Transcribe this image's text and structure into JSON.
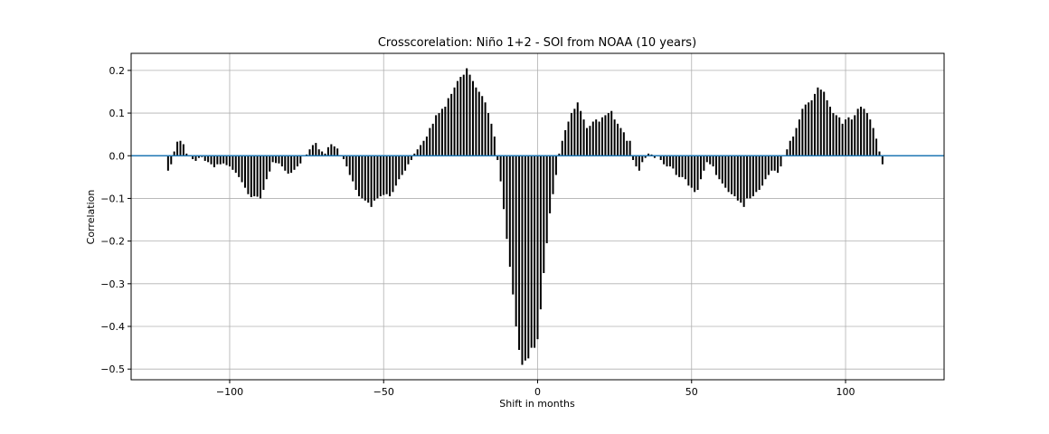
{
  "chart_data": {
    "type": "bar",
    "title": "Crosscorelation: Niño 1+2 - SOI from NOAA (10 years)",
    "xlabel": "Shift in months",
    "ylabel": "Correlation",
    "xlim": [
      -132,
      132
    ],
    "ylim": [
      -0.525,
      0.24
    ],
    "xticks": [
      -100,
      -50,
      0,
      50,
      100
    ],
    "xtick_labels": [
      "−100",
      "−50",
      "0",
      "50",
      "100"
    ],
    "yticks": [
      -0.5,
      -0.4,
      -0.3,
      -0.2,
      -0.1,
      0.0,
      0.1,
      0.2
    ],
    "ytick_labels": [
      "−0.5",
      "−0.4",
      "−0.3",
      "−0.2",
      "−0.1",
      "0.0",
      "0.1",
      "0.2"
    ],
    "grid": true,
    "bar_color": "#000000",
    "zero_line_color": "#1f77b4",
    "x_start": -120,
    "x_step": 1,
    "values": [
      -0.035,
      -0.02,
      0.01,
      0.033,
      0.035,
      0.027,
      0.005,
      0.0,
      -0.008,
      -0.012,
      -0.005,
      -0.003,
      -0.012,
      -0.015,
      -0.02,
      -0.027,
      -0.02,
      -0.02,
      -0.018,
      -0.022,
      -0.025,
      -0.033,
      -0.04,
      -0.05,
      -0.062,
      -0.075,
      -0.09,
      -0.097,
      -0.095,
      -0.096,
      -0.1,
      -0.08,
      -0.055,
      -0.037,
      -0.015,
      -0.017,
      -0.018,
      -0.025,
      -0.035,
      -0.042,
      -0.04,
      -0.033,
      -0.025,
      -0.018,
      0.0,
      0.003,
      0.015,
      0.025,
      0.03,
      0.015,
      0.01,
      0.005,
      0.02,
      0.027,
      0.022,
      0.017,
      0.0,
      -0.008,
      -0.025,
      -0.045,
      -0.06,
      -0.08,
      -0.095,
      -0.1,
      -0.105,
      -0.11,
      -0.12,
      -0.105,
      -0.1,
      -0.095,
      -0.092,
      -0.09,
      -0.095,
      -0.085,
      -0.07,
      -0.055,
      -0.045,
      -0.035,
      -0.02,
      -0.01,
      0.005,
      0.015,
      0.025,
      0.035,
      0.045,
      0.065,
      0.075,
      0.095,
      0.1,
      0.11,
      0.115,
      0.135,
      0.145,
      0.16,
      0.175,
      0.185,
      0.19,
      0.205,
      0.19,
      0.175,
      0.16,
      0.15,
      0.14,
      0.125,
      0.1,
      0.075,
      0.045,
      -0.01,
      -0.06,
      -0.125,
      -0.195,
      -0.26,
      -0.325,
      -0.4,
      -0.455,
      -0.49,
      -0.48,
      -0.475,
      -0.45,
      -0.45,
      -0.43,
      -0.36,
      -0.275,
      -0.205,
      -0.135,
      -0.09,
      -0.045,
      0.005,
      0.035,
      0.06,
      0.08,
      0.1,
      0.11,
      0.125,
      0.105,
      0.085,
      0.065,
      0.07,
      0.08,
      0.085,
      0.08,
      0.09,
      0.095,
      0.1,
      0.105,
      0.085,
      0.075,
      0.065,
      0.055,
      0.035,
      0.035,
      -0.01,
      -0.025,
      -0.035,
      -0.015,
      -0.005,
      0.005,
      0.003,
      -0.005,
      0.0,
      -0.01,
      -0.02,
      -0.025,
      -0.025,
      -0.03,
      -0.045,
      -0.05,
      -0.05,
      -0.055,
      -0.07,
      -0.075,
      -0.085,
      -0.08,
      -0.055,
      -0.035,
      -0.015,
      -0.02,
      -0.025,
      -0.045,
      -0.055,
      -0.065,
      -0.075,
      -0.085,
      -0.09,
      -0.095,
      -0.105,
      -0.11,
      -0.12,
      -0.1,
      -0.1,
      -0.095,
      -0.085,
      -0.08,
      -0.07,
      -0.055,
      -0.045,
      -0.035,
      -0.035,
      -0.04,
      -0.025,
      0.0,
      0.015,
      0.035,
      0.045,
      0.065,
      0.085,
      0.11,
      0.12,
      0.125,
      0.13,
      0.145,
      0.16,
      0.155,
      0.15,
      0.13,
      0.115,
      0.1,
      0.095,
      0.09,
      0.075,
      0.085,
      0.09,
      0.085,
      0.095,
      0.11,
      0.115,
      0.11,
      0.1,
      0.085,
      0.065,
      0.04,
      0.01,
      -0.02
    ]
  }
}
